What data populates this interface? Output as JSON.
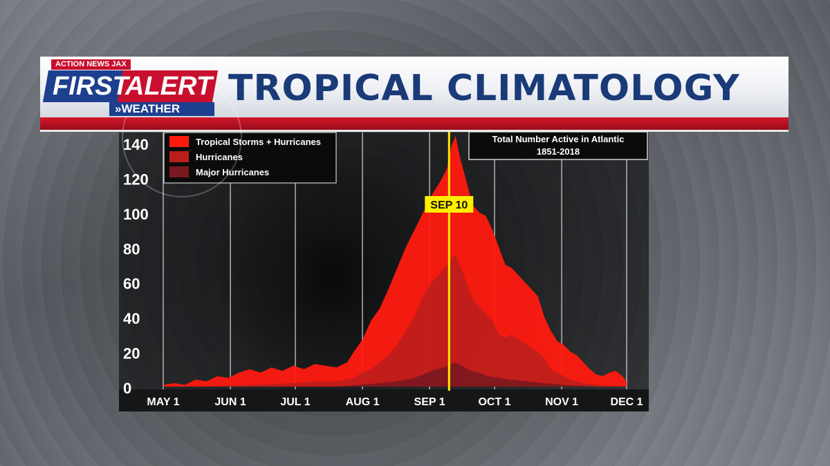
{
  "header": {
    "title": "TROPICAL CLIMATOLOGY",
    "logo_top": "ACTION NEWS JAX",
    "logo_first": "FIRST",
    "logo_alert": "ALERT",
    "logo_weather": "»WEATHER"
  },
  "colors": {
    "title": "#1a3a78",
    "brand_blue": "#1d3f8f",
    "brand_red": "#c8102e",
    "ts_hurricanes": "#ff1a10",
    "hurricanes": "#b81f1c",
    "major_hurricanes": "#7a1820",
    "marker": "#ffee00"
  },
  "chart_data": {
    "type": "area",
    "title": "Total Number Active in Atlantic",
    "subtitle": "1851-2018",
    "x_ticks": [
      "MAY 1",
      "JUN 1",
      "JUL 1",
      "AUG 1",
      "SEP 1",
      "OCT 1",
      "NOV 1",
      "DEC 1"
    ],
    "y_ticks": [
      "0",
      "20",
      "40",
      "60",
      "80",
      "100",
      "120",
      "140"
    ],
    "ylim": [
      0,
      150
    ],
    "legend_position": "top-left",
    "marker": {
      "label": "SEP 10",
      "day": 132
    },
    "x_unit_note": "x values are days after May 1",
    "series": [
      {
        "name": "Tropical Storms + Hurricanes",
        "points": [
          [
            0,
            1
          ],
          [
            5,
            2
          ],
          [
            10,
            1
          ],
          [
            15,
            4
          ],
          [
            20,
            3
          ],
          [
            25,
            6
          ],
          [
            30,
            5
          ],
          [
            35,
            8
          ],
          [
            40,
            10
          ],
          [
            45,
            8
          ],
          [
            50,
            11
          ],
          [
            55,
            9
          ],
          [
            60,
            12
          ],
          [
            65,
            10
          ],
          [
            70,
            13
          ],
          [
            75,
            12
          ],
          [
            80,
            11
          ],
          [
            85,
            14
          ],
          [
            88,
            20
          ],
          [
            92,
            27
          ],
          [
            96,
            38
          ],
          [
            100,
            45
          ],
          [
            104,
            56
          ],
          [
            108,
            68
          ],
          [
            112,
            80
          ],
          [
            116,
            90
          ],
          [
            120,
            100
          ],
          [
            124,
            110
          ],
          [
            128,
            118
          ],
          [
            131,
            125
          ],
          [
            133,
            138
          ],
          [
            135,
            144
          ],
          [
            137,
            132
          ],
          [
            140,
            118
          ],
          [
            143,
            104
          ],
          [
            146,
            100
          ],
          [
            149,
            98
          ],
          [
            152,
            90
          ],
          [
            155,
            80
          ],
          [
            158,
            70
          ],
          [
            161,
            68
          ],
          [
            164,
            64
          ],
          [
            167,
            60
          ],
          [
            170,
            56
          ],
          [
            173,
            52
          ],
          [
            176,
            40
          ],
          [
            179,
            32
          ],
          [
            182,
            26
          ],
          [
            185,
            24
          ],
          [
            188,
            20
          ],
          [
            191,
            18
          ],
          [
            194,
            14
          ],
          [
            197,
            10
          ],
          [
            200,
            7
          ],
          [
            203,
            6
          ],
          [
            206,
            8
          ],
          [
            209,
            9
          ],
          [
            212,
            6
          ],
          [
            214,
            3
          ]
        ]
      },
      {
        "name": "Hurricanes",
        "points": [
          [
            0,
            0
          ],
          [
            20,
            0
          ],
          [
            40,
            1
          ],
          [
            60,
            2
          ],
          [
            70,
            3
          ],
          [
            80,
            3
          ],
          [
            88,
            5
          ],
          [
            92,
            8
          ],
          [
            96,
            10
          ],
          [
            100,
            14
          ],
          [
            104,
            18
          ],
          [
            108,
            24
          ],
          [
            112,
            32
          ],
          [
            116,
            40
          ],
          [
            120,
            52
          ],
          [
            124,
            60
          ],
          [
            128,
            65
          ],
          [
            131,
            70
          ],
          [
            133,
            74
          ],
          [
            135,
            76
          ],
          [
            137,
            70
          ],
          [
            140,
            60
          ],
          [
            143,
            50
          ],
          [
            146,
            46
          ],
          [
            149,
            42
          ],
          [
            152,
            38
          ],
          [
            155,
            30
          ],
          [
            158,
            28
          ],
          [
            161,
            30
          ],
          [
            164,
            27
          ],
          [
            167,
            25
          ],
          [
            170,
            22
          ],
          [
            173,
            20
          ],
          [
            176,
            16
          ],
          [
            179,
            10
          ],
          [
            182,
            8
          ],
          [
            185,
            6
          ],
          [
            188,
            4
          ],
          [
            194,
            2
          ],
          [
            200,
            1
          ],
          [
            214,
            0
          ]
        ]
      },
      {
        "name": "Major Hurricanes",
        "points": [
          [
            0,
            0
          ],
          [
            80,
            0
          ],
          [
            90,
            1
          ],
          [
            100,
            2
          ],
          [
            108,
            3
          ],
          [
            116,
            5
          ],
          [
            122,
            8
          ],
          [
            126,
            10
          ],
          [
            130,
            11
          ],
          [
            133,
            13
          ],
          [
            135,
            14
          ],
          [
            138,
            12
          ],
          [
            142,
            9
          ],
          [
            146,
            8
          ],
          [
            150,
            6
          ],
          [
            155,
            5
          ],
          [
            160,
            4
          ],
          [
            168,
            3
          ],
          [
            176,
            2
          ],
          [
            186,
            1
          ],
          [
            200,
            0
          ],
          [
            214,
            0
          ]
        ]
      }
    ]
  }
}
